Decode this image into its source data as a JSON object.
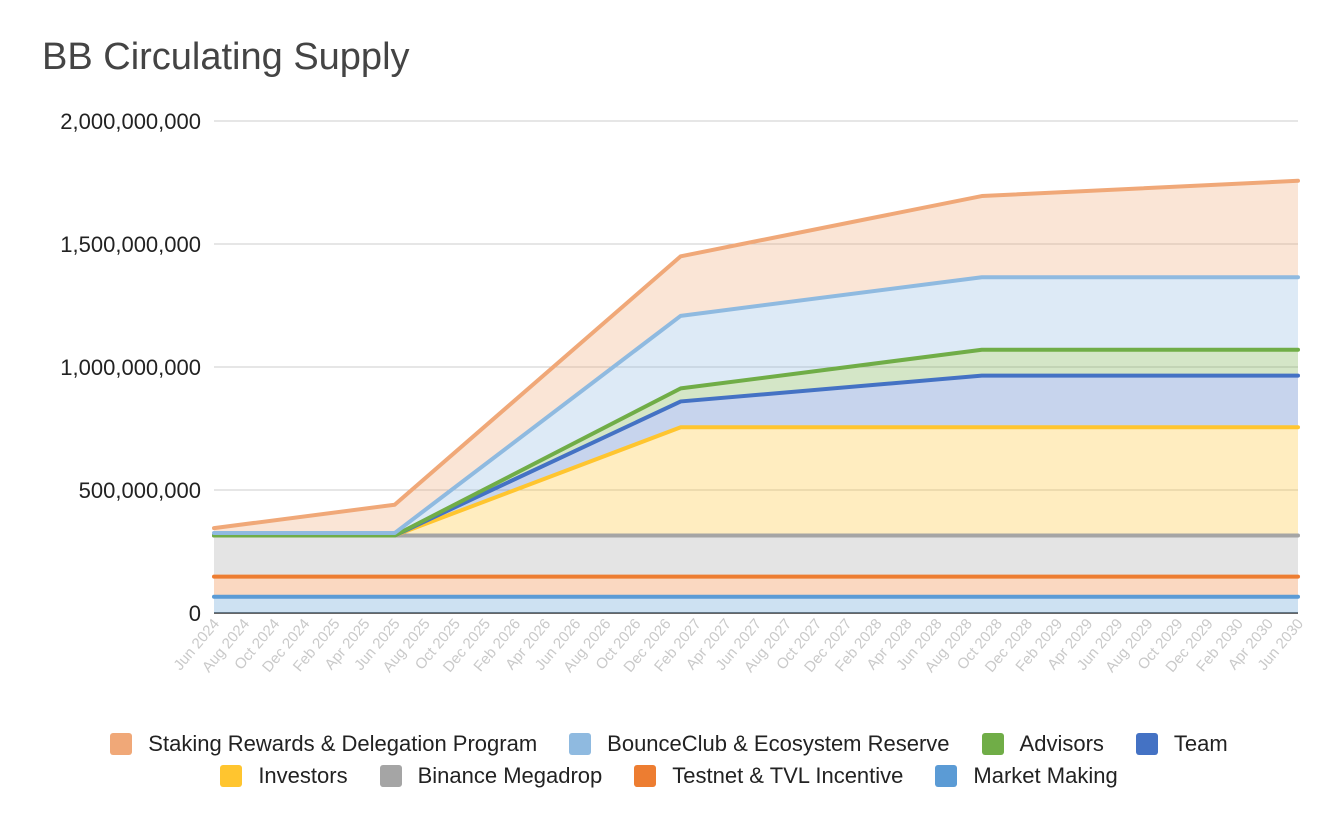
{
  "chart_data": {
    "type": "area",
    "stacked": true,
    "title": "BB Circulating Supply",
    "xlabel": "",
    "ylabel": "",
    "ylim": [
      0,
      2000000000
    ],
    "yticks": [
      "0",
      "500,000,000",
      "1,000,000,000",
      "1,500,000,000",
      "2,000,000,000"
    ],
    "ytick_values": [
      0,
      500000000,
      1000000000,
      1500000000,
      2000000000
    ],
    "grid": true,
    "legend_position": "bottom",
    "x_tick_labels": [
      "Jun 2024",
      "Aug 2024",
      "Oct 2024",
      "Dec 2024",
      "Feb 2025",
      "Apr 2025",
      "Jun 2025",
      "Aug 2025",
      "Oct 2025",
      "Dec 2025",
      "Feb 2026",
      "Apr 2026",
      "Jun 2026",
      "Aug 2026",
      "Oct 2026",
      "Dec 2026",
      "Feb 2027",
      "Apr 2027",
      "Jun 2027",
      "Aug 2027",
      "Oct 2027",
      "Dec 2027",
      "Feb 2028",
      "Apr 2028",
      "Jun 2028",
      "Aug 2028",
      "Oct 2028",
      "Dec 2028",
      "Feb 2029",
      "Apr 2029",
      "Jun 2029",
      "Aug 2029",
      "Oct 2029",
      "Dec 2029",
      "Feb 2030",
      "Apr 2030",
      "Jun 2030"
    ],
    "x": [
      "Jun 2024",
      "Jun 2025",
      "Jan 2027",
      "Sep 2028",
      "Jun 2030"
    ],
    "cumulative_totals": [
      {
        "name": "Market Making",
        "color": "#5b9bd5",
        "values": [
          66000000,
          66000000,
          66000000,
          66000000,
          66000000
        ]
      },
      {
        "name": "Testnet & TVL Incentive",
        "color": "#ed7d31",
        "values": [
          148000000,
          148000000,
          148000000,
          148000000,
          148000000
        ]
      },
      {
        "name": "Binance Megadrop",
        "color": "#a5a5a5",
        "values": [
          315000000,
          315000000,
          315000000,
          315000000,
          315000000
        ]
      },
      {
        "name": "Investors",
        "color": "#ffc52f",
        "values": [
          315000000,
          315000000,
          755000000,
          755000000,
          755000000
        ]
      },
      {
        "name": "Team",
        "color": "#4472c4",
        "values": [
          315000000,
          315000000,
          860000000,
          965000000,
          965000000
        ]
      },
      {
        "name": "Advisors",
        "color": "#70ad47",
        "values": [
          315000000,
          315000000,
          913000000,
          1070000000,
          1070000000
        ]
      },
      {
        "name": "BounceClub & Ecosystem Reserve",
        "color": "#8fbae0",
        "values": [
          325000000,
          325000000,
          1208000000,
          1365000000,
          1365000000
        ]
      },
      {
        "name": "Staking Rewards & Delegation Program",
        "color": "#f0a878",
        "values": [
          345000000,
          440000000,
          1450000000,
          1695000000,
          1757000000
        ]
      }
    ],
    "legend": [
      [
        {
          "name": "Staking Rewards & Delegation Program",
          "color": "#f0a878"
        },
        {
          "name": "BounceClub & Ecosystem Reserve",
          "color": "#8fbae0"
        },
        {
          "name": "Advisors",
          "color": "#70ad47"
        },
        {
          "name": "Team",
          "color": "#4472c4"
        }
      ],
      [
        {
          "name": "Investors",
          "color": "#ffc52f"
        },
        {
          "name": "Binance Megadrop",
          "color": "#a5a5a5"
        },
        {
          "name": "Testnet & TVL Incentive",
          "color": "#ed7d31"
        },
        {
          "name": "Market Making",
          "color": "#5b9bd5"
        }
      ]
    ]
  }
}
